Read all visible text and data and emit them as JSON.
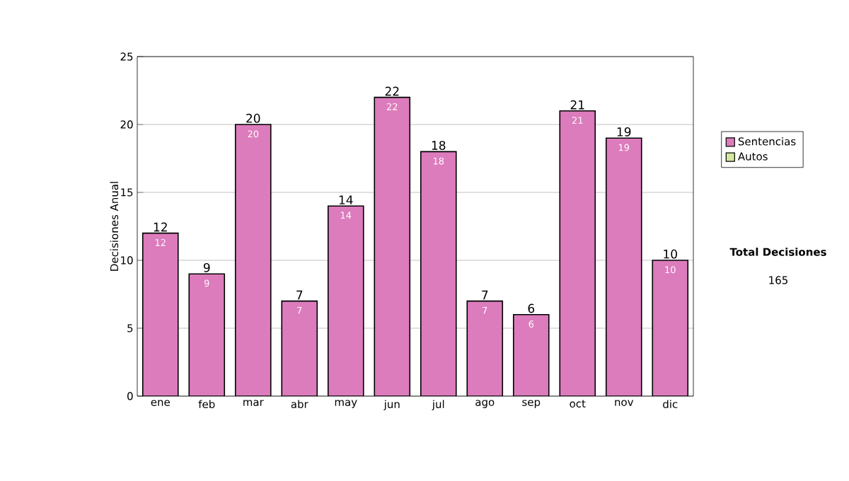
{
  "chart_data": {
    "type": "bar",
    "stacked": true,
    "categories": [
      "ene",
      "feb",
      "mar",
      "abr",
      "may",
      "jun",
      "jul",
      "ago",
      "sep",
      "oct",
      "nov",
      "dic"
    ],
    "series": [
      {
        "name": "Sentencias",
        "color": "#dc7cbc",
        "values": [
          12,
          9,
          20,
          7,
          14,
          22,
          18,
          7,
          6,
          21,
          19,
          10
        ],
        "value_labels": [
          "12",
          "9",
          "20",
          "7",
          "14",
          "22",
          "18",
          "7",
          "6",
          "21",
          "19",
          "10"
        ]
      },
      {
        "name": "Autos",
        "color": "#d4e8a0",
        "values": [
          null,
          null,
          null,
          null,
          null,
          null,
          null,
          null,
          null,
          null,
          null,
          null
        ]
      }
    ],
    "totals": [
      "12",
      "9",
      "20",
      "7",
      "14",
      "22",
      "18",
      "7",
      "6",
      "21",
      "19",
      "10"
    ],
    "ylabel": "Decisiones Anual",
    "ylim": [
      0,
      25
    ],
    "yticks": [
      0,
      5,
      10,
      15,
      20,
      25
    ],
    "grid": "y",
    "legend": "right",
    "annotations": [
      "**Total Decisiones**",
      "165"
    ]
  }
}
